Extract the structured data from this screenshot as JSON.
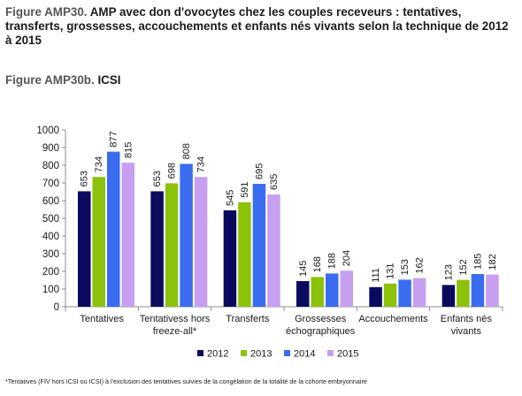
{
  "figure_title": {
    "prefix": "Figure AMP30.",
    "text": "AMP avec don d'ovocytes chez les couples receveurs : tentatives, transferts, grossesses, accouchements et enfants nés vivants selon la technique de 2012 à 2015"
  },
  "figure_subtitle": {
    "prefix": "Figure AMP30b.",
    "text": "ICSI"
  },
  "footnote": "*Tentatives (FIV hors ICSI ou ICSI) à l'exclusion des tentatives suivies de la congélation de la totalité de la cohorte embryonnaire",
  "chart_data": {
    "type": "bar",
    "title": "",
    "xlabel": "",
    "ylabel": "",
    "ylim": [
      0,
      1000
    ],
    "yticks": [
      0,
      100,
      200,
      300,
      400,
      500,
      600,
      700,
      800,
      900,
      1000
    ],
    "grid": false,
    "legend_position": "bottom",
    "categories": [
      [
        "Tentatives"
      ],
      [
        "Tentativess hors",
        "freeze-all*"
      ],
      [
        "Transferts"
      ],
      [
        "Grossesses",
        "échographiques"
      ],
      [
        "Accouchements"
      ],
      [
        "Enfants nés",
        "vivants"
      ]
    ],
    "series": [
      {
        "name": "2012",
        "color": "#0a0a5e",
        "values": [
          653,
          653,
          545,
          145,
          111,
          123
        ]
      },
      {
        "name": "2013",
        "color": "#8cc20a",
        "values": [
          734,
          698,
          591,
          168,
          131,
          152
        ]
      },
      {
        "name": "2014",
        "color": "#3a6cf0",
        "values": [
          877,
          808,
          695,
          188,
          153,
          185
        ]
      },
      {
        "name": "2015",
        "color": "#c79ff0",
        "values": [
          815,
          734,
          635,
          204,
          162,
          182
        ]
      }
    ]
  }
}
